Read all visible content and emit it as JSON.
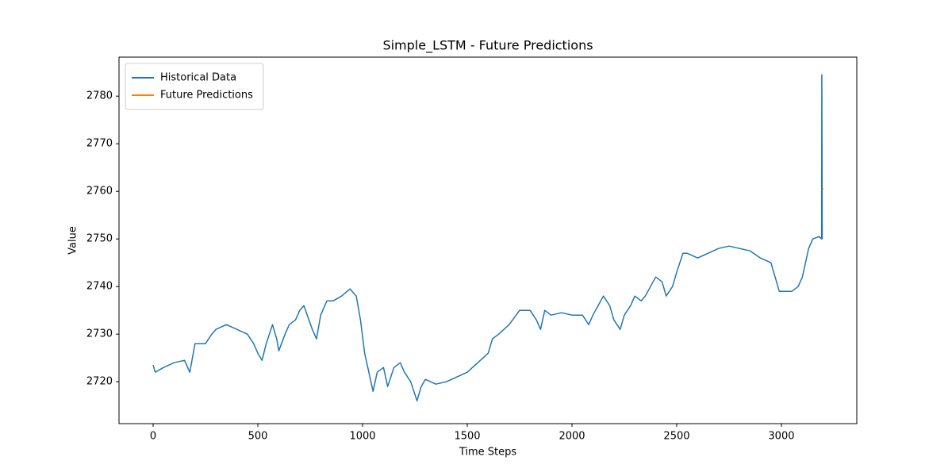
{
  "chart_data": {
    "type": "line",
    "title": "Simple_LSTM - Future Predictions",
    "x_label": "Time Steps",
    "y_label": "Value",
    "xlim": [
      -163,
      3360
    ],
    "xticks": [
      0,
      500,
      1000,
      1500,
      2000,
      2500,
      3000
    ],
    "ylim": [
      2711.2,
      2788.2
    ],
    "yticks": [
      2720,
      2730,
      2740,
      2750,
      2760,
      2770,
      2780
    ],
    "legend": "upper left",
    "grid": false,
    "series": [
      {
        "name": "Historical Data",
        "color": "#1f77b4",
        "x": [
          0,
          10,
          50,
          100,
          150,
          175,
          200,
          250,
          280,
          300,
          350,
          400,
          450,
          480,
          500,
          520,
          540,
          570,
          590,
          600,
          630,
          650,
          680,
          700,
          720,
          760,
          780,
          800,
          830,
          860,
          900,
          940,
          970,
          990,
          1010,
          1030,
          1050,
          1070,
          1100,
          1120,
          1150,
          1180,
          1200,
          1230,
          1260,
          1280,
          1300,
          1350,
          1400,
          1450,
          1500,
          1550,
          1600,
          1620,
          1650,
          1700,
          1750,
          1800,
          1830,
          1850,
          1870,
          1900,
          1950,
          2000,
          2050,
          2080,
          2100,
          2150,
          2180,
          2200,
          2230,
          2250,
          2280,
          2300,
          2330,
          2350,
          2400,
          2430,
          2450,
          2480,
          2500,
          2530,
          2550,
          2600,
          2650,
          2700,
          2750,
          2800,
          2850,
          2900,
          2950,
          2970,
          2990,
          3050,
          3080,
          3100,
          3130,
          3150,
          3180,
          3192,
          3193,
          3195
        ],
        "values": [
          2723.5,
          2722,
          2723,
          2724,
          2724.5,
          2722,
          2728,
          2728,
          2730,
          2731,
          2732,
          2731,
          2730,
          2728,
          2726,
          2724.5,
          2728,
          2732,
          2729,
          2726.5,
          2730,
          2732,
          2733,
          2735,
          2736,
          2731,
          2729,
          2734,
          2737,
          2737,
          2738,
          2739.5,
          2738,
          2733,
          2726,
          2722,
          2718,
          2722,
          2723,
          2719,
          2723,
          2724,
          2722,
          2720,
          2716,
          2719,
          2720.5,
          2719.5,
          2720,
          2721,
          2722,
          2724,
          2726,
          2729,
          2730,
          2732,
          2735,
          2735,
          2733,
          2731,
          2735,
          2734,
          2734.5,
          2734,
          2734,
          2732,
          2734,
          2738,
          2736,
          2733,
          2731,
          2734,
          2736,
          2738,
          2737,
          2738,
          2742,
          2741,
          2738,
          2740,
          2743,
          2747,
          2747,
          2746,
          2747,
          2748,
          2748.5,
          2748,
          2747.5,
          2746,
          2745,
          2742,
          2739,
          2739,
          2740,
          2742,
          2748,
          2750,
          2750.5,
          2750,
          2784.5,
          2750
        ]
      },
      {
        "name": "Future Predictions",
        "color": "#ff7f0e",
        "x": [
          3195,
          3198,
          3200
        ],
        "values": [
          2760.2,
          2760.5,
          2760.3
        ]
      }
    ]
  }
}
